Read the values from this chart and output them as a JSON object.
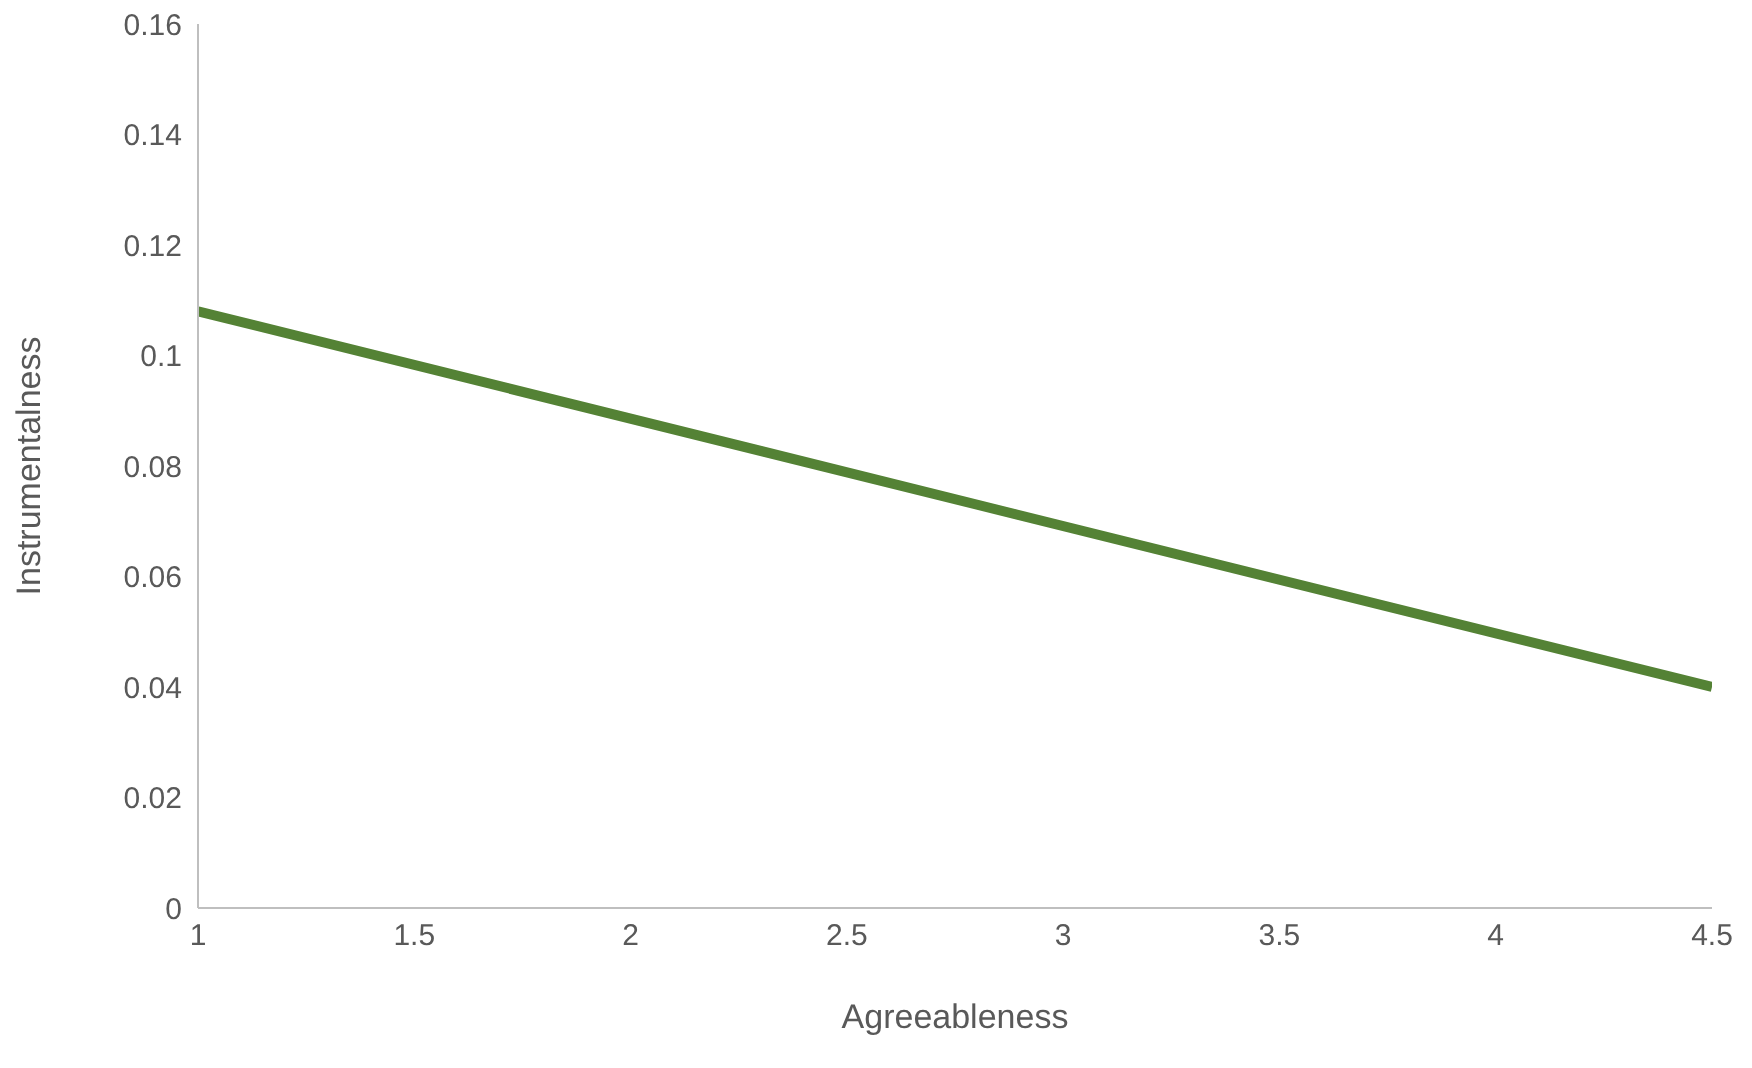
{
  "chart_data": {
    "type": "line",
    "xlabel": "Agreeableness",
    "ylabel": "Instrumentalness",
    "x": [
      1,
      4.5
    ],
    "series": [
      {
        "color": "#548235",
        "values": [
          0.108,
          0.04
        ]
      }
    ],
    "xlim": [
      1,
      4.5
    ],
    "xticks": [
      1,
      1.5,
      2,
      2.5,
      3,
      3.5,
      4,
      4.5
    ],
    "ylim": [
      0,
      0.16
    ],
    "yticks": [
      0,
      0.02,
      0.04,
      0.06,
      0.08,
      0.1,
      0.12,
      0.14,
      0.16
    ],
    "grid": false,
    "legend": false,
    "marker": "none",
    "line_style": "solid"
  }
}
